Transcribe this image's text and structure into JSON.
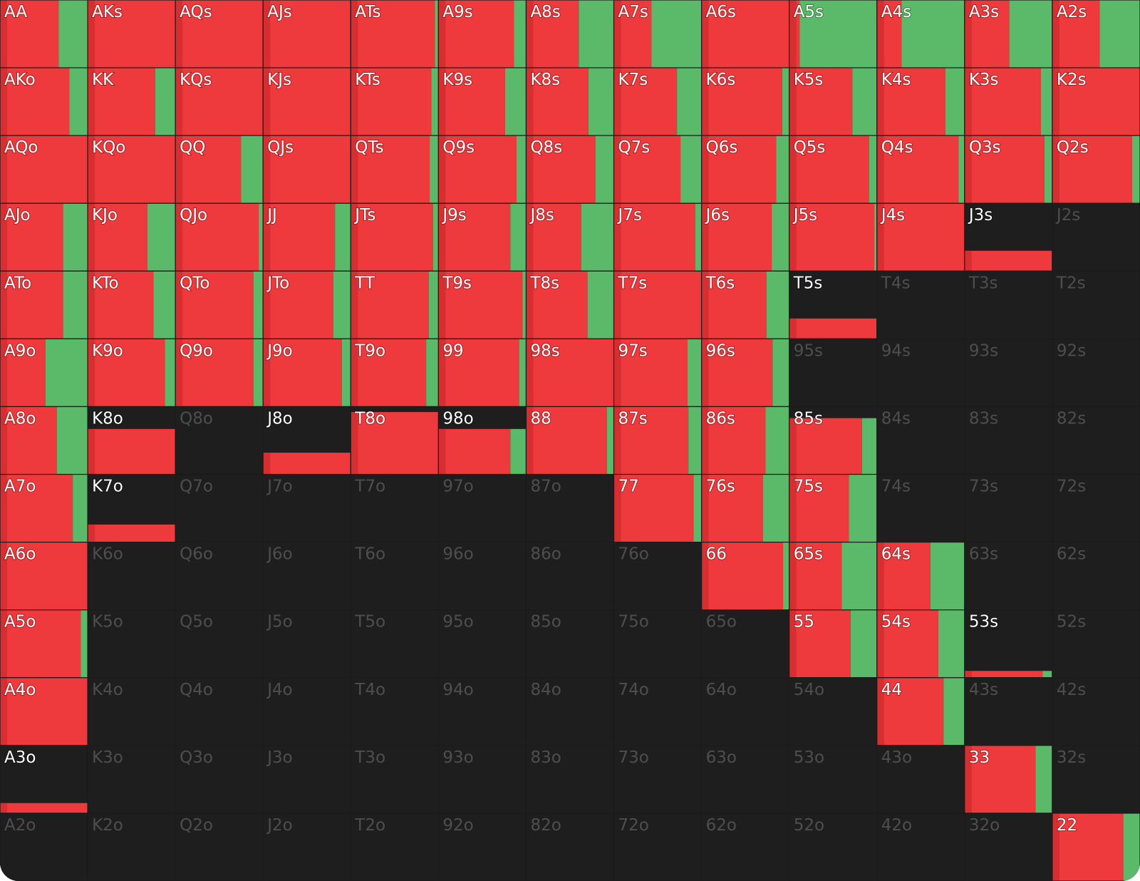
{
  "grid": {
    "hands": [
      [
        "AA",
        "AKs",
        "AQs",
        "AJs",
        "ATs",
        "A9s",
        "A8s",
        "A7s",
        "A6s",
        "A5s",
        "A4s",
        "A3s",
        "A2s"
      ],
      [
        "AKo",
        "KK",
        "KQs",
        "KJs",
        "KTs",
        "K9s",
        "K8s",
        "K7s",
        "K6s",
        "K5s",
        "K4s",
        "K3s",
        "K2s"
      ],
      [
        "AQo",
        "KQo",
        "QQ",
        "QJs",
        "QTs",
        "Q9s",
        "Q8s",
        "Q7s",
        "Q6s",
        "Q5s",
        "Q4s",
        "Q3s",
        "Q2s"
      ],
      [
        "AJo",
        "KJo",
        "QJo",
        "JJ",
        "JTs",
        "J9s",
        "J8s",
        "J7s",
        "J6s",
        "J5s",
        "J4s",
        "J3s",
        "J2s"
      ],
      [
        "ATo",
        "KTo",
        "QTo",
        "JTo",
        "TT",
        "T9s",
        "T8s",
        "T7s",
        "T6s",
        "T5s",
        "T4s",
        "T3s",
        "T2s"
      ],
      [
        "A9o",
        "K9o",
        "Q9o",
        "J9o",
        "T9o",
        "99",
        "98s",
        "97s",
        "96s",
        "95s",
        "94s",
        "93s",
        "92s"
      ],
      [
        "A8o",
        "K8o",
        "Q8o",
        "J8o",
        "T8o",
        "98o",
        "88",
        "87s",
        "86s",
        "85s",
        "84s",
        "83s",
        "82s"
      ],
      [
        "A7o",
        "K7o",
        "Q7o",
        "J7o",
        "T7o",
        "97o",
        "87o",
        "77",
        "76s",
        "75s",
        "74s",
        "73s",
        "72s"
      ],
      [
        "A6o",
        "K6o",
        "Q6o",
        "J6o",
        "T6o",
        "96o",
        "86o",
        "76o",
        "66",
        "65s",
        "64s",
        "63s",
        "62s"
      ],
      [
        "A5o",
        "K5o",
        "Q5o",
        "J5o",
        "T5o",
        "95o",
        "85o",
        "75o",
        "65o",
        "55",
        "54s",
        "53s",
        "52s"
      ],
      [
        "A4o",
        "K4o",
        "Q4o",
        "J4o",
        "T4o",
        "94o",
        "84o",
        "74o",
        "64o",
        "54o",
        "44",
        "43s",
        "42s"
      ],
      [
        "A3o",
        "K3o",
        "Q3o",
        "J3o",
        "T3o",
        "93o",
        "83o",
        "73o",
        "63o",
        "53o",
        "43o",
        "33",
        "32s"
      ],
      [
        "A2o",
        "K2o",
        "Q2o",
        "J2o",
        "T2o",
        "92o",
        "82o",
        "72o",
        "62o",
        "52o",
        "42o",
        "32o",
        "22"
      ]
    ],
    "raise": [
      [
        0.67,
        1,
        1,
        1,
        0.96,
        0.86,
        0.6,
        0.43,
        1,
        0.12,
        0.28,
        0.51,
        0.54
      ],
      [
        0.79,
        0.77,
        1,
        1,
        0.92,
        0.76,
        0.71,
        0.72,
        0.92,
        0.72,
        0.78,
        0.87,
        1
      ],
      [
        1,
        1,
        0.75,
        1,
        0.9,
        0.89,
        0.79,
        0.76,
        0.85,
        0.91,
        0.93,
        0.91,
        0.91
      ],
      [
        0.72,
        0.68,
        0.95,
        0.82,
        0.94,
        0.82,
        0.63,
        0.93,
        0.8,
        0.97,
        1,
        1,
        0
      ],
      [
        0.72,
        0.75,
        0.89,
        0.8,
        0.89,
        0.96,
        0.7,
        1,
        0.74,
        1,
        0,
        0,
        0
      ],
      [
        0.52,
        0.88,
        0.89,
        0.9,
        0.86,
        0.92,
        1,
        0.84,
        0.81,
        0,
        0,
        0,
        0
      ],
      [
        0.65,
        1,
        0,
        1,
        1,
        0.82,
        0.92,
        0.85,
        0.73,
        0.83,
        0,
        0,
        0
      ],
      [
        0.83,
        1,
        0,
        0,
        0,
        0,
        0,
        0.91,
        0.7,
        0.68,
        0,
        0,
        0
      ],
      [
        1,
        0,
        0,
        0,
        0,
        0,
        0,
        0,
        0.93,
        0.6,
        0.61,
        0,
        0
      ],
      [
        0.92,
        0,
        0,
        0,
        0,
        0,
        0,
        0,
        0,
        0.7,
        0.7,
        0.89,
        0
      ],
      [
        1,
        0,
        0,
        0,
        0,
        0,
        0,
        0,
        0,
        0,
        0.76,
        0,
        0
      ],
      [
        1,
        0,
        0,
        0,
        0,
        0,
        0,
        0,
        0,
        0,
        0,
        0.81,
        0
      ],
      [
        0,
        0,
        0,
        0,
        0,
        0,
        0,
        0,
        0,
        0,
        0,
        0,
        0.81
      ]
    ],
    "call": [
      [
        0.33,
        0,
        0,
        0,
        0.04,
        0.14,
        0.4,
        0.57,
        0,
        0.88,
        0.72,
        0.49,
        0.46
      ],
      [
        0.21,
        0.23,
        0,
        0,
        0.08,
        0.24,
        0.29,
        0.28,
        0.08,
        0.28,
        0.22,
        0.13,
        0
      ],
      [
        0,
        0,
        0.25,
        0,
        0.1,
        0.11,
        0.21,
        0.24,
        0.15,
        0.09,
        0.07,
        0.09,
        0.09
      ],
      [
        0.28,
        0.32,
        0.05,
        0.18,
        0.06,
        0.18,
        0.37,
        0.07,
        0.2,
        0.03,
        0,
        0,
        0
      ],
      [
        0.28,
        0.25,
        0.11,
        0.2,
        0.11,
        0.04,
        0.3,
        0,
        0.26,
        0,
        0,
        0,
        0
      ],
      [
        0.48,
        0.12,
        0.11,
        0.1,
        0.14,
        0.08,
        0,
        0.16,
        0.19,
        0,
        0,
        0,
        0
      ],
      [
        0.35,
        0,
        0,
        0,
        0,
        0.18,
        0.08,
        0.15,
        0.27,
        0.17,
        0,
        0,
        0
      ],
      [
        0.17,
        0,
        0,
        0,
        0,
        0,
        0,
        0.09,
        0.3,
        0.32,
        0,
        0,
        0
      ],
      [
        0,
        0,
        0,
        0,
        0,
        0,
        0,
        0,
        0.07,
        0.4,
        0.39,
        0,
        0
      ],
      [
        0.08,
        0,
        0,
        0,
        0,
        0,
        0,
        0,
        0,
        0.3,
        0.3,
        0.11,
        0
      ],
      [
        0,
        0,
        0,
        0,
        0,
        0,
        0,
        0,
        0,
        0,
        0.24,
        0,
        0
      ],
      [
        0,
        0,
        0,
        0,
        0,
        0,
        0,
        0,
        0,
        0,
        0,
        0.19,
        0
      ],
      [
        0,
        0,
        0,
        0,
        0,
        0,
        0,
        0,
        0,
        0,
        0,
        0,
        0.19
      ]
    ],
    "weight": [
      [
        1,
        1,
        1,
        1,
        1,
        1,
        1,
        1,
        1,
        1,
        1,
        1,
        1
      ],
      [
        1,
        1,
        1,
        1,
        1,
        1,
        1,
        1,
        1,
        1,
        1,
        1,
        1
      ],
      [
        1,
        1,
        1,
        1,
        1,
        1,
        1,
        1,
        1,
        1,
        1,
        1,
        1
      ],
      [
        1,
        1,
        1,
        1,
        1,
        1,
        1,
        1,
        1,
        1,
        1,
        0.3,
        0
      ],
      [
        1,
        1,
        1,
        1,
        1,
        1,
        1,
        1,
        1,
        0.3,
        0,
        0,
        0
      ],
      [
        1,
        1,
        1,
        1,
        1,
        1,
        1,
        1,
        1,
        0,
        0,
        0,
        0
      ],
      [
        1,
        0.67,
        0,
        0.32,
        0.92,
        0.67,
        1,
        1,
        1,
        0.83,
        0,
        0,
        0
      ],
      [
        1,
        0.26,
        0,
        0,
        0,
        0,
        0,
        1,
        1,
        1,
        0,
        0,
        0
      ],
      [
        1,
        0,
        0,
        0,
        0,
        0,
        0,
        0,
        1,
        1,
        1,
        0,
        0
      ],
      [
        1,
        0,
        0,
        0,
        0,
        0,
        0,
        0,
        0,
        1,
        1,
        0.1,
        0
      ],
      [
        1,
        0,
        0,
        0,
        0,
        0,
        0,
        0,
        0,
        0,
        1,
        0,
        0
      ],
      [
        0.15,
        0,
        0,
        0,
        0,
        0,
        0,
        0,
        0,
        0,
        0,
        1,
        0
      ],
      [
        0,
        0,
        0,
        0,
        0,
        0,
        0,
        0,
        0,
        0,
        0,
        0,
        1
      ]
    ]
  }
}
